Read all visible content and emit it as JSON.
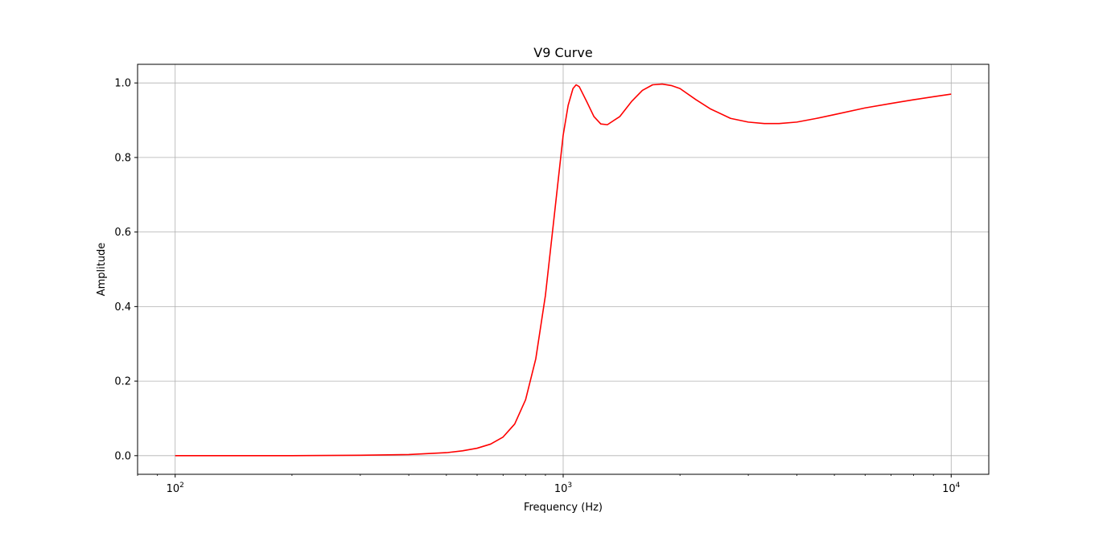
{
  "chart_data": {
    "type": "line",
    "title": "V9 Curve",
    "xlabel": "Frequency (Hz)",
    "ylabel": "Amplitude",
    "xscale": "log",
    "xlim": [
      80,
      12500
    ],
    "ylim": [
      -0.05,
      1.05
    ],
    "grid": true,
    "line_color": "#ff0000",
    "x_ticks": [
      {
        "value": 100,
        "base": "10",
        "exp": "2"
      },
      {
        "value": 1000,
        "base": "10",
        "exp": "3"
      },
      {
        "value": 10000,
        "base": "10",
        "exp": "4"
      }
    ],
    "y_ticks": [
      {
        "value": 0.0,
        "label": "0.0"
      },
      {
        "value": 0.2,
        "label": "0.2"
      },
      {
        "value": 0.4,
        "label": "0.4"
      },
      {
        "value": 0.6,
        "label": "0.6"
      },
      {
        "value": 0.8,
        "label": "0.8"
      },
      {
        "value": 1.0,
        "label": "1.0"
      }
    ],
    "series": [
      {
        "x": [
          100,
          200,
          300,
          400,
          500,
          550,
          600,
          650,
          700,
          750,
          800,
          850,
          900,
          950,
          1000,
          1030,
          1060,
          1080,
          1100,
          1150,
          1200,
          1250,
          1300,
          1400,
          1500,
          1600,
          1700,
          1800,
          1900,
          2000,
          2200,
          2400,
          2700,
          3000,
          3300,
          3600,
          4000,
          4500,
          5000,
          6000,
          7000,
          8000,
          9000,
          10000
        ],
        "y": [
          0.0,
          0.0,
          0.001,
          0.003,
          0.008,
          0.013,
          0.02,
          0.031,
          0.05,
          0.085,
          0.15,
          0.26,
          0.43,
          0.65,
          0.86,
          0.94,
          0.985,
          0.995,
          0.99,
          0.95,
          0.91,
          0.89,
          0.888,
          0.91,
          0.95,
          0.98,
          0.995,
          0.997,
          0.993,
          0.985,
          0.955,
          0.93,
          0.905,
          0.895,
          0.891,
          0.891,
          0.895,
          0.905,
          0.915,
          0.933,
          0.945,
          0.955,
          0.963,
          0.97
        ]
      }
    ]
  }
}
